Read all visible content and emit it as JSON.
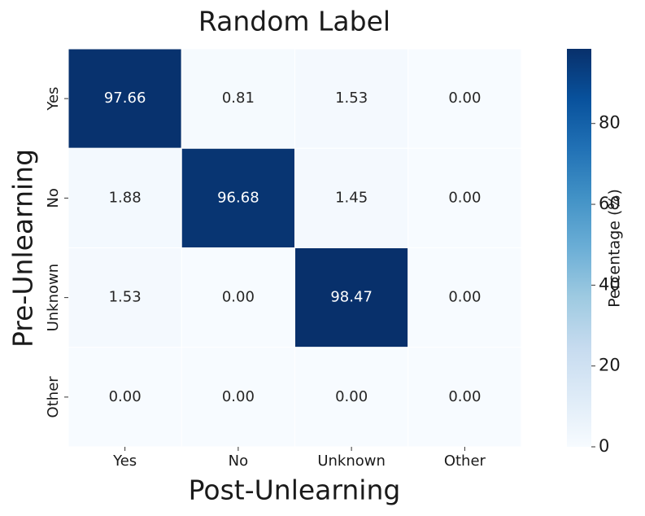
{
  "chart_data": {
    "type": "heatmap",
    "title": "Random Label",
    "x_label": "Post-Unlearning",
    "y_label": "Pre-Unlearning",
    "x_categories": [
      "Yes",
      "No",
      "Unknown",
      "Other"
    ],
    "y_categories": [
      "Yes",
      "No",
      "Unknown",
      "Other"
    ],
    "values": [
      [
        97.66,
        0.81,
        1.53,
        0
      ],
      [
        1.88,
        96.68,
        1.45,
        0
      ],
      [
        1.53,
        0,
        98.47,
        0
      ],
      [
        0,
        0,
        0,
        0
      ]
    ],
    "value_labels": [
      [
        "97.66",
        "0.81",
        "1.53",
        "0.00"
      ],
      [
        "1.88",
        "96.68",
        "1.45",
        "0.00"
      ],
      [
        "1.53",
        "0.00",
        "98.47",
        "0.00"
      ],
      [
        "0.00",
        "0.00",
        "0.00",
        "0.00"
      ]
    ],
    "colors": [
      "#f7fbff",
      "#deebf7",
      "#c6dbef",
      "#9ecae1",
      "#6baed6",
      "#4292c6",
      "#2171b5",
      "#08519c",
      "#08306b"
    ],
    "colorbar_label": "Percentage (%)",
    "clim": [
      0,
      98.47
    ],
    "cticks": [
      0,
      20,
      40,
      60,
      80
    ]
  }
}
